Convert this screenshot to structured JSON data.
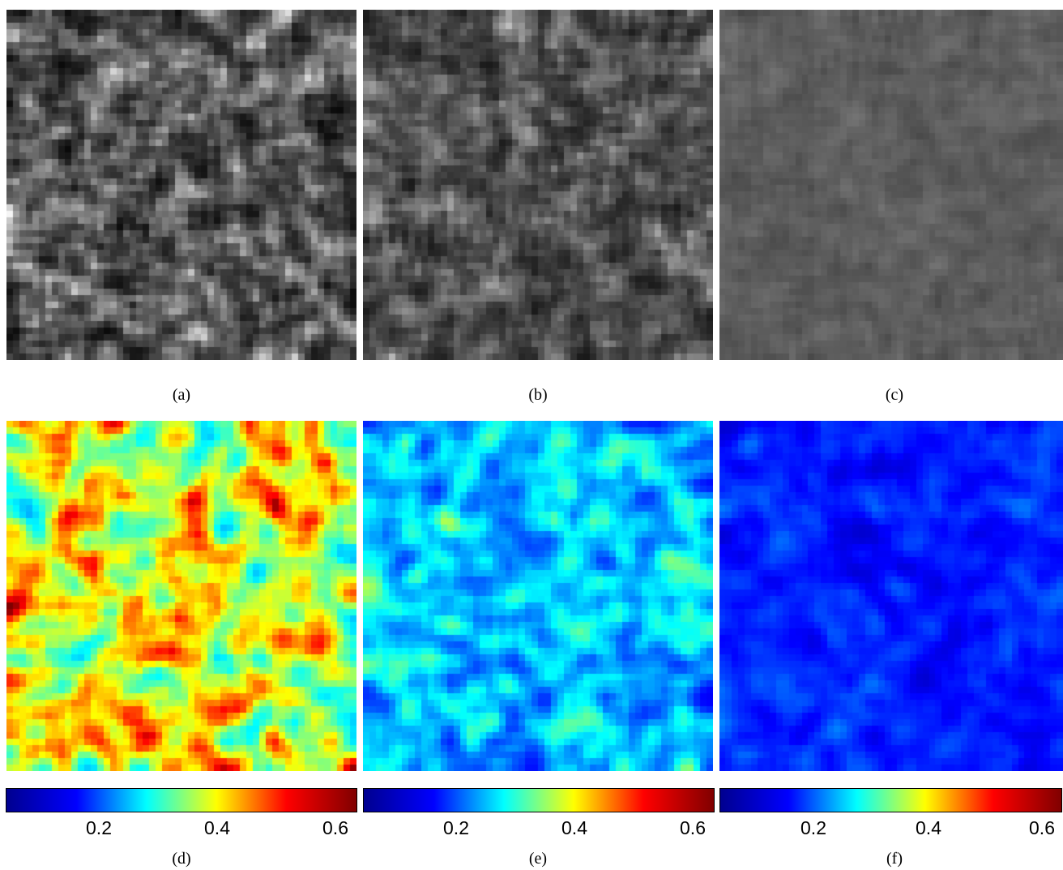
{
  "panels": [
    {
      "id": "a",
      "caption": "(a)",
      "style": "grayscale"
    },
    {
      "id": "b",
      "caption": "(b)",
      "style": "grayscale"
    },
    {
      "id": "c",
      "caption": "(c)",
      "style": "grayscale"
    },
    {
      "id": "d",
      "caption": "(d)",
      "style": "jet"
    },
    {
      "id": "e",
      "caption": "(e)",
      "style": "jet"
    },
    {
      "id": "f",
      "caption": "(f)",
      "style": "jet"
    }
  ],
  "colorbars": [
    {
      "id": "d",
      "ticks": [
        "0.2",
        "0.4",
        "0.6"
      ],
      "range": [
        0.04,
        0.64
      ],
      "tick_values": [
        0.2,
        0.4,
        0.6
      ]
    },
    {
      "id": "e",
      "ticks": [
        "0.2",
        "0.4",
        "0.6"
      ],
      "range": [
        0.04,
        0.64
      ],
      "tick_values": [
        0.2,
        0.4,
        0.6
      ]
    },
    {
      "id": "f",
      "ticks": [
        "0.2",
        "0.4",
        "0.6"
      ],
      "range": [
        0.04,
        0.64
      ],
      "tick_values": [
        0.2,
        0.4,
        0.6
      ]
    }
  ],
  "colormap": {
    "name": "jet",
    "stops": [
      "#00008f",
      "#0000ff",
      "#00ffff",
      "#ffff00",
      "#ff0000",
      "#800000"
    ]
  }
}
